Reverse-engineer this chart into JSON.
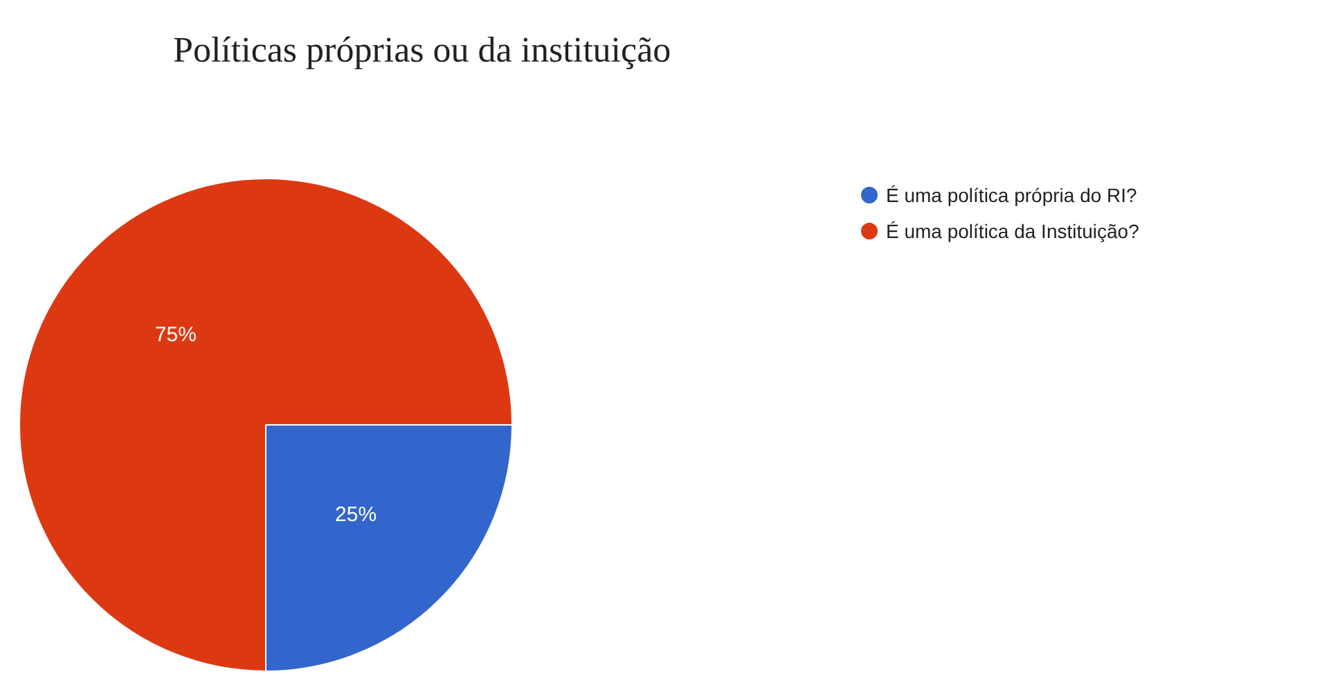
{
  "chart_data": {
    "type": "pie",
    "title": "Políticas próprias ou da instituição",
    "categories": [
      "É uma política própria do RI?",
      "É uma política da Instituição?"
    ],
    "values": [
      25,
      75
    ],
    "value_labels": [
      "25%",
      "75%"
    ],
    "colors": [
      "#3366cc",
      "#dc3912"
    ],
    "legend": "top right"
  }
}
